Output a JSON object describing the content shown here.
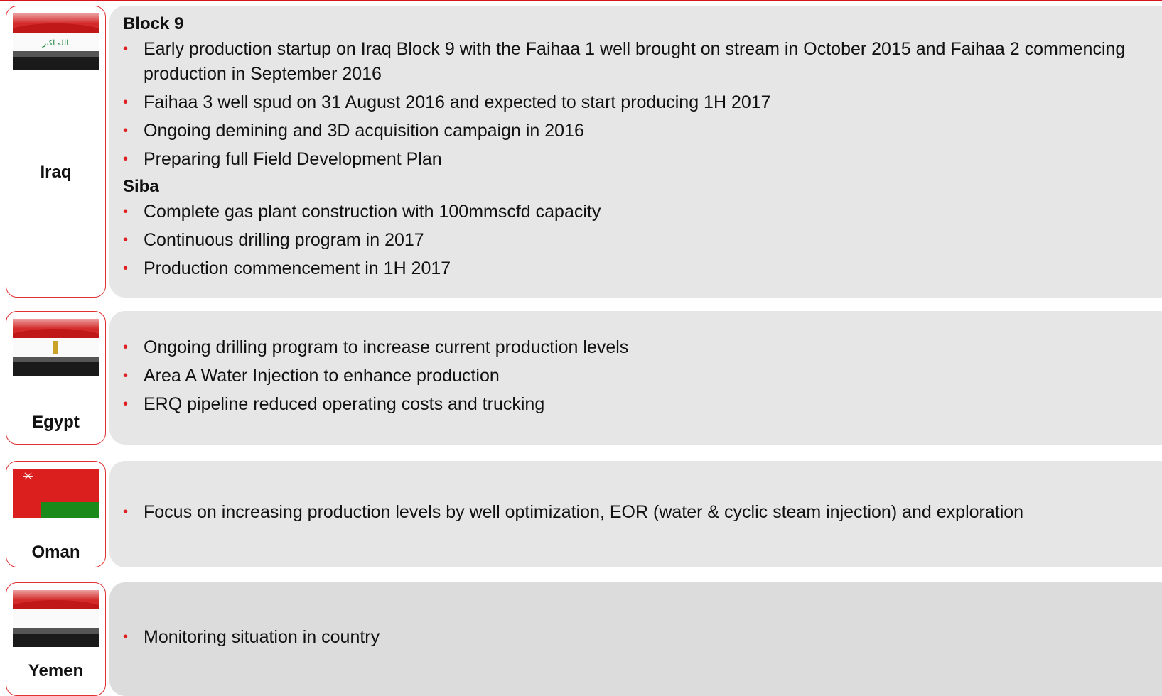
{
  "countries": [
    {
      "name": "Iraq",
      "sections": [
        {
          "heading": "Block 9",
          "bullets": [
            "Early production startup on Iraq Block 9 with the Faihaa 1 well brought on stream in October 2015 and Faihaa 2 commencing production in September 2016",
            "Faihaa 3 well spud on 31 August 2016 and expected to start producing 1H 2017",
            "Ongoing demining and 3D acquisition campaign in 2016",
            "Preparing full Field Development Plan"
          ]
        },
        {
          "heading": "Siba",
          "bullets": [
            "Complete gas plant construction with 100mmscfd capacity",
            "Continuous drilling program in 2017",
            "Production commencement in 1H 2017"
          ]
        }
      ]
    },
    {
      "name": "Egypt",
      "sections": [
        {
          "bullets": [
            "Ongoing drilling program to increase current production levels",
            "Area A Water Injection to enhance production",
            "ERQ pipeline reduced operating costs and trucking"
          ]
        }
      ]
    },
    {
      "name": "Oman",
      "sections": [
        {
          "bullets": [
            "Focus on increasing production levels by well optimization, EOR (water & cyclic steam injection) and exploration"
          ]
        }
      ]
    },
    {
      "name": "Yemen",
      "sections": [
        {
          "bullets": [
            "Monitoring situation in country"
          ]
        }
      ]
    }
  ]
}
